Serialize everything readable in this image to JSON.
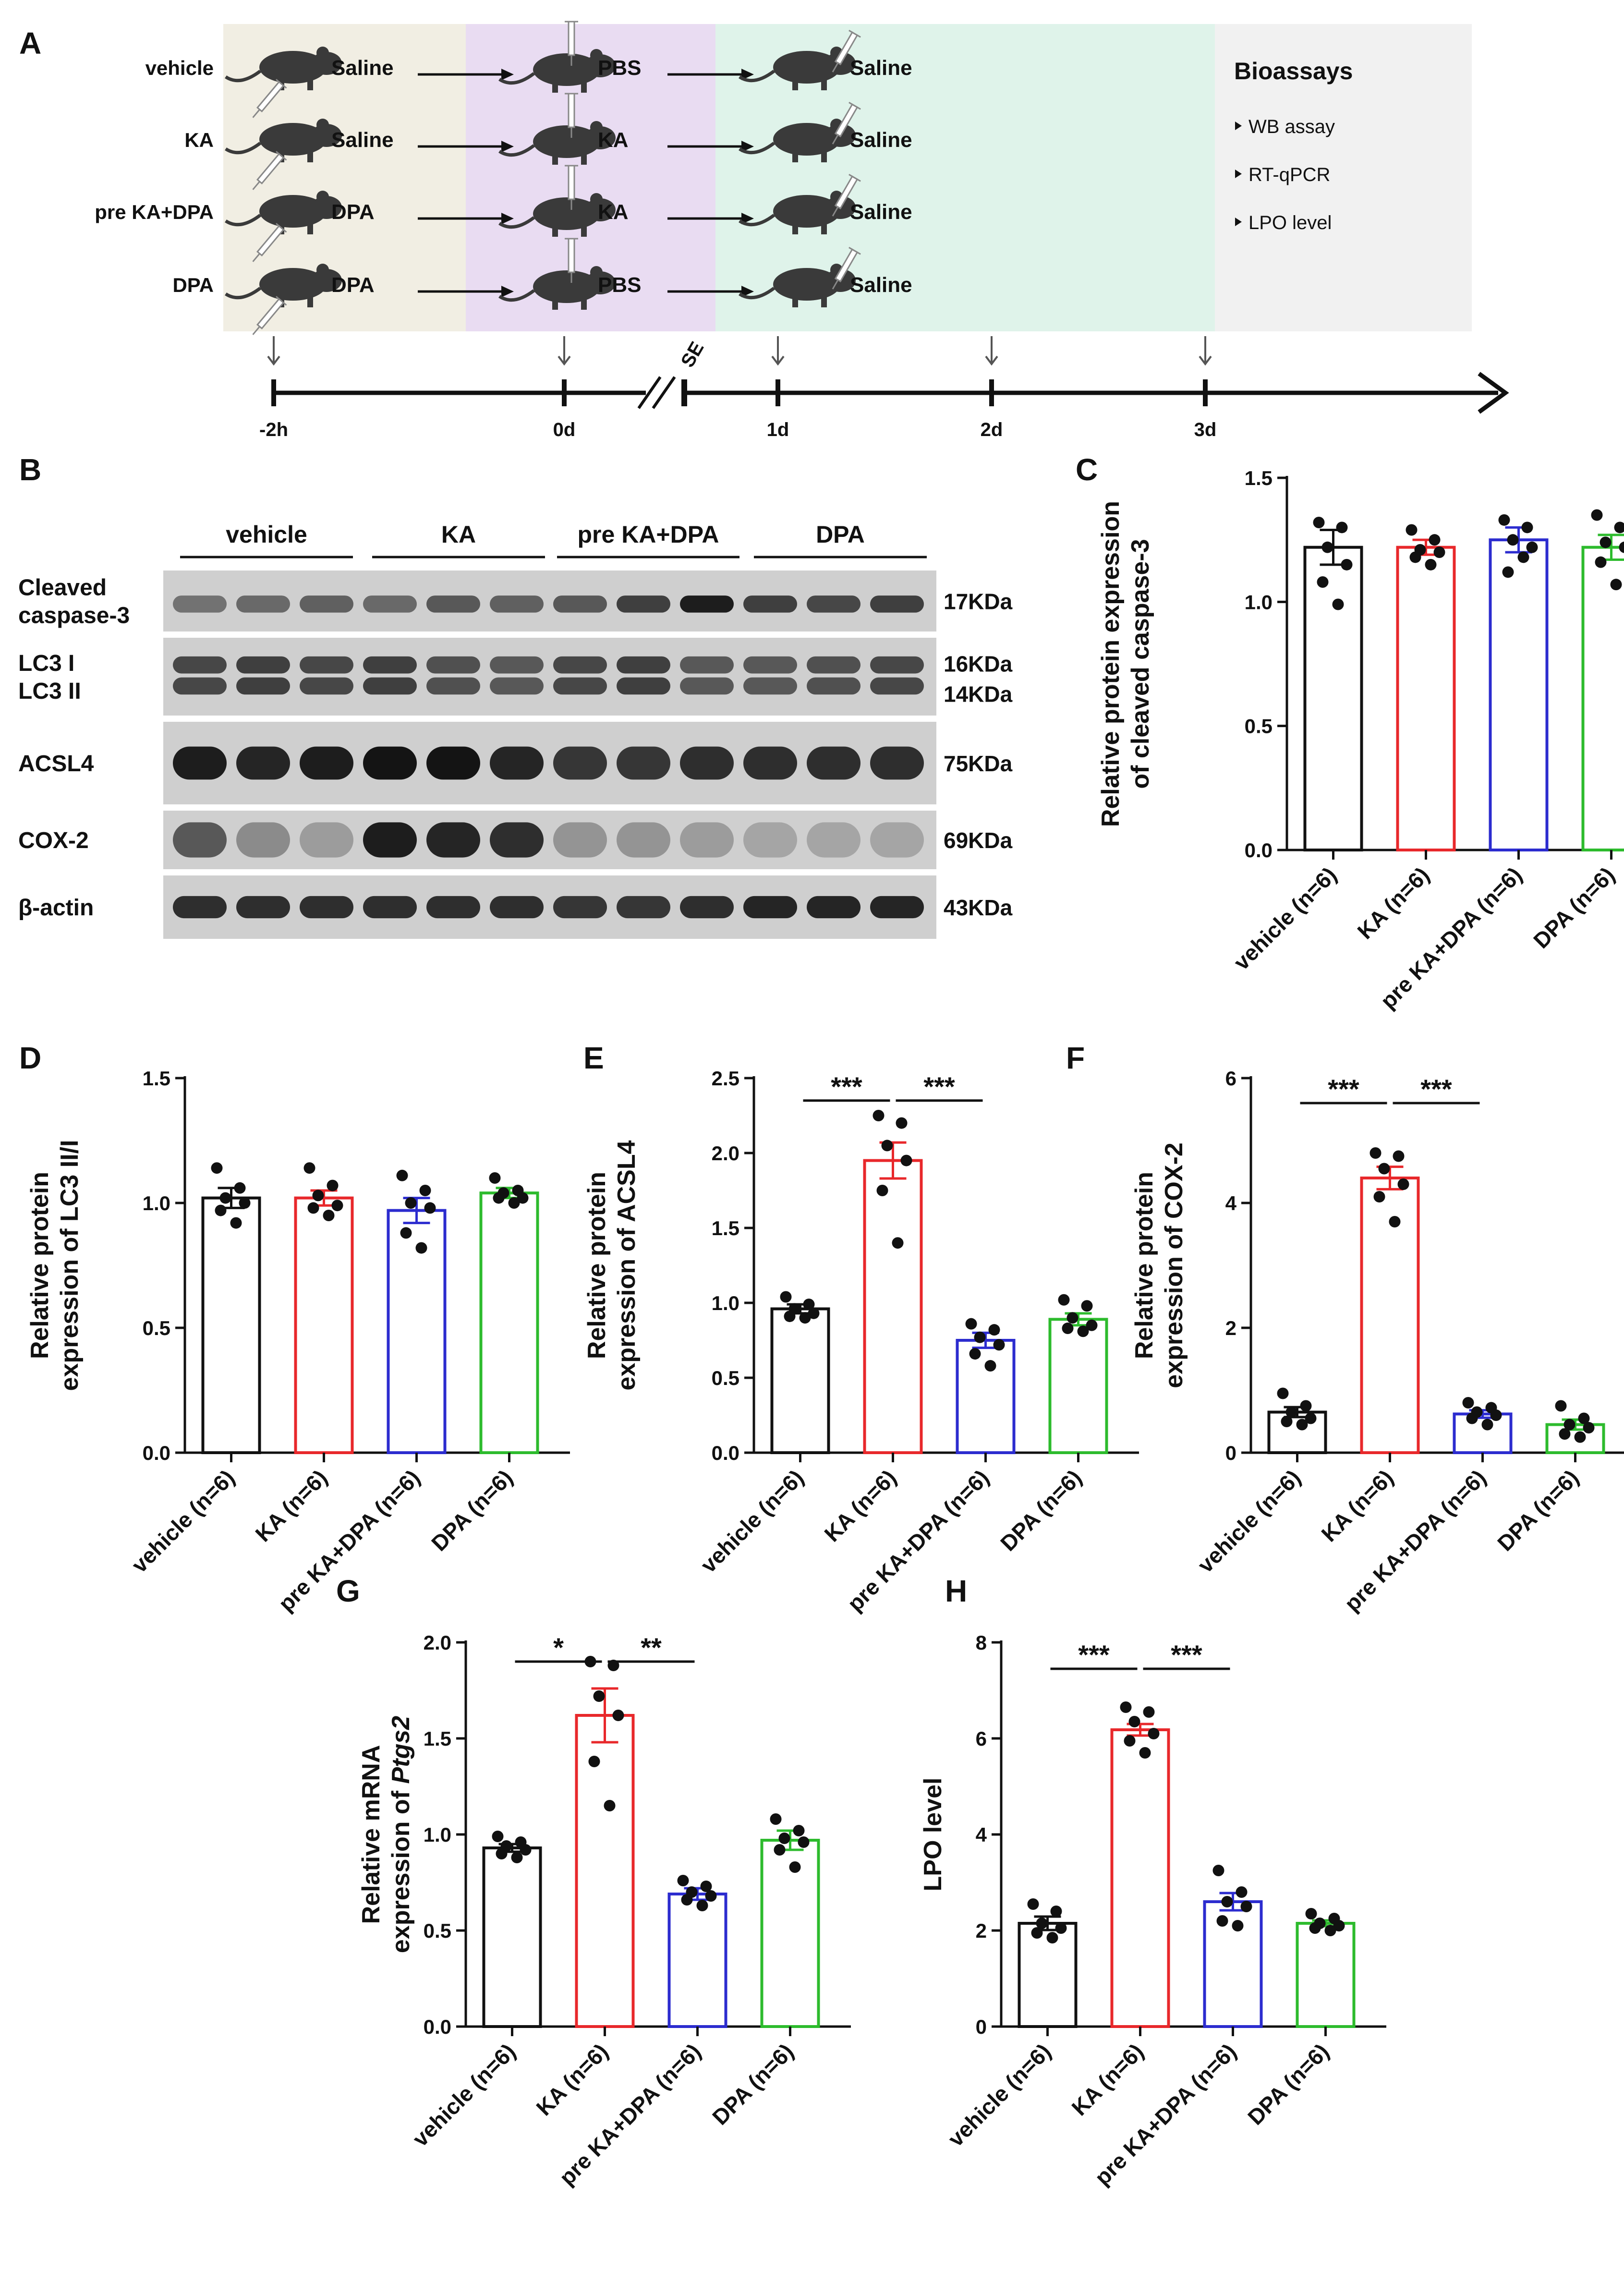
{
  "panels": {
    "a": "A",
    "b": "B",
    "c": "C",
    "d": "D",
    "e": "E",
    "f": "F",
    "g": "G",
    "h": "H"
  },
  "schematic": {
    "groups": [
      {
        "name": "vehicle",
        "pre": "Saline",
        "inj": "PBS",
        "post": "Saline",
        "inj_color": "#111111"
      },
      {
        "name": "KA",
        "pre": "Saline",
        "inj": "KA",
        "post": "Saline",
        "inj_color": "#e8282b"
      },
      {
        "name": "pre KA+DPA",
        "pre": "DPA",
        "inj": "KA",
        "post": "Saline",
        "inj_color": "#e8282b"
      },
      {
        "name": "DPA",
        "pre": "DPA",
        "inj": "PBS",
        "post": "Saline",
        "inj_color": "#111111"
      }
    ],
    "bioassays_title": "Bioassays",
    "bioassays": [
      "WB assay",
      "RT-qPCR",
      "LPO level"
    ],
    "timeline": [
      "-2h",
      "0d",
      "1d",
      "2d",
      "3d"
    ],
    "se_label": "SE",
    "colors": {
      "pre_bg": "#f1eee3",
      "inj_bg": "#e9dcf2",
      "post_bg": "#dff3ea",
      "bio_bg": "#f1f1f1"
    }
  },
  "western_blot": {
    "groups": [
      "vehicle",
      "KA",
      "pre KA+DPA",
      "DPA"
    ],
    "rows": [
      {
        "label": "Cleaved\ncaspase-3",
        "kda": [
          "17KDa"
        ]
      },
      {
        "label": "LC3 I\nLC3 II",
        "kda": [
          "16KDa",
          "14KDa"
        ]
      },
      {
        "label": "ACSL4",
        "kda": [
          "75KDa"
        ]
      },
      {
        "label": "COX-2",
        "kda": [
          "69KDa"
        ]
      },
      {
        "label": "β-actin",
        "kda": [
          "43KDa"
        ]
      }
    ]
  },
  "group_colors": [
    "#111111",
    "#e8282b",
    "#2c2ccf",
    "#2dbb2d"
  ],
  "chart_data": [
    {
      "panel": "C",
      "type": "bar",
      "categories": [
        "vehicle (n=6)",
        "KA (n=6)",
        "pre KA+DPA (n=6)",
        "DPA (n=6)"
      ],
      "ylabel": "Relative protein expression\nof cleaved caspase-3",
      "ylim": [
        0,
        1.5
      ],
      "yticks": [
        "0.0",
        "0.5",
        "1.0",
        "1.5"
      ],
      "values": [
        1.22,
        1.22,
        1.25,
        1.22
      ],
      "sem": [
        0.07,
        0.03,
        0.05,
        0.05
      ],
      "points": [
        [
          1.32,
          1.3,
          1.22,
          1.15,
          1.08,
          0.99
        ],
        [
          1.29,
          1.25,
          1.21,
          1.2,
          1.18,
          1.15
        ],
        [
          1.33,
          1.3,
          1.25,
          1.22,
          1.12,
          1.18
        ],
        [
          1.35,
          1.3,
          1.24,
          1.22,
          1.16,
          1.07
        ]
      ],
      "significance": []
    },
    {
      "panel": "D",
      "type": "bar",
      "categories": [
        "vehicle (n=6)",
        "KA (n=6)",
        "pre KA+DPA (n=6)",
        "DPA (n=6)"
      ],
      "ylabel": "Relative protein\nexpression of LC3 II/I",
      "ylim": [
        0,
        1.5
      ],
      "yticks": [
        "0.0",
        "0.5",
        "1.0",
        "1.5"
      ],
      "values": [
        1.02,
        1.02,
        0.97,
        1.04
      ],
      "sem": [
        0.04,
        0.03,
        0.05,
        0.02
      ],
      "points": [
        [
          1.14,
          1.06,
          1.02,
          1.0,
          0.97,
          0.92
        ],
        [
          1.14,
          1.07,
          1.03,
          0.99,
          0.98,
          0.95
        ],
        [
          1.11,
          1.05,
          1.0,
          0.98,
          0.88,
          0.82
        ],
        [
          1.1,
          1.05,
          1.04,
          1.02,
          1.02,
          1.0
        ]
      ],
      "significance": []
    },
    {
      "panel": "E",
      "type": "bar",
      "categories": [
        "vehicle (n=6)",
        "KA (n=6)",
        "pre KA+DPA (n=6)",
        "DPA (n=6)"
      ],
      "ylabel": "Relative protein\nexpression of ACSL4",
      "ylim": [
        0,
        2.5
      ],
      "yticks": [
        "0.0",
        "0.5",
        "1.0",
        "1.5",
        "2.0",
        "2.5"
      ],
      "values": [
        0.96,
        1.95,
        0.75,
        0.89
      ],
      "sem": [
        0.03,
        0.12,
        0.05,
        0.04
      ],
      "points": [
        [
          1.04,
          0.99,
          0.96,
          0.93,
          0.91,
          0.9
        ],
        [
          2.25,
          2.2,
          2.05,
          1.95,
          1.75,
          1.4
        ],
        [
          0.86,
          0.82,
          0.77,
          0.72,
          0.66,
          0.58
        ],
        [
          1.02,
          0.98,
          0.9,
          0.85,
          0.83,
          0.81
        ]
      ],
      "significance": [
        {
          "from": 0,
          "to": 1,
          "label": "***",
          "y": 2.35
        },
        {
          "from": 1,
          "to": 2,
          "label": "***",
          "y": 2.35
        }
      ]
    },
    {
      "panel": "F",
      "type": "bar",
      "categories": [
        "vehicle (n=6)",
        "KA (n=6)",
        "pre KA+DPA (n=6)",
        "DPA (n=6)"
      ],
      "ylabel": "Relative protein\nexpression of COX-2",
      "ylim": [
        0,
        6
      ],
      "yticks": [
        "0",
        "2",
        "4",
        "6"
      ],
      "values": [
        0.65,
        4.4,
        0.62,
        0.45
      ],
      "sem": [
        0.08,
        0.18,
        0.06,
        0.08
      ],
      "points": [
        [
          0.95,
          0.75,
          0.65,
          0.55,
          0.5,
          0.45
        ],
        [
          4.8,
          4.75,
          4.55,
          4.3,
          4.1,
          3.7
        ],
        [
          0.8,
          0.72,
          0.65,
          0.6,
          0.55,
          0.45
        ],
        [
          0.75,
          0.55,
          0.45,
          0.4,
          0.3,
          0.25
        ]
      ],
      "significance": [
        {
          "from": 0,
          "to": 1,
          "label": "***",
          "y": 5.6
        },
        {
          "from": 1,
          "to": 2,
          "label": "***",
          "y": 5.6
        }
      ]
    },
    {
      "panel": "G",
      "type": "bar",
      "categories": [
        "vehicle (n=6)",
        "KA (n=6)",
        "pre KA+DPA (n=6)",
        "DPA (n=6)"
      ],
      "ylabel": "Relative mRNA\nexpression of ",
      "ylabel_italic": "Ptgs2",
      "ylim": [
        0,
        2.0
      ],
      "yticks": [
        "0.0",
        "0.5",
        "1.0",
        "1.5",
        "2.0"
      ],
      "values": [
        0.93,
        1.62,
        0.69,
        0.97
      ],
      "sem": [
        0.02,
        0.14,
        0.03,
        0.05
      ],
      "points": [
        [
          0.99,
          0.96,
          0.94,
          0.92,
          0.9,
          0.88
        ],
        [
          1.9,
          1.88,
          1.72,
          1.62,
          1.38,
          1.15
        ],
        [
          0.76,
          0.73,
          0.7,
          0.68,
          0.66,
          0.63
        ],
        [
          1.08,
          1.02,
          0.98,
          0.96,
          0.92,
          0.83
        ]
      ],
      "significance": [
        {
          "from": 0,
          "to": 1,
          "label": "*",
          "y": 1.9
        },
        {
          "from": 1,
          "to": 2,
          "label": "**",
          "y": 1.9
        }
      ]
    },
    {
      "panel": "H",
      "type": "bar",
      "categories": [
        "vehicle (n=6)",
        "KA (n=6)",
        "pre KA+DPA (n=6)",
        "DPA (n=6)"
      ],
      "ylabel": "LPO level",
      "ylim": [
        0,
        8
      ],
      "yticks": [
        "0",
        "2",
        "4",
        "6",
        "8"
      ],
      "values": [
        2.15,
        6.18,
        2.6,
        2.15
      ],
      "sem": [
        0.14,
        0.12,
        0.18,
        0.06
      ],
      "points": [
        [
          2.55,
          2.4,
          2.15,
          2.05,
          1.95,
          1.85
        ],
        [
          6.65,
          6.55,
          6.35,
          6.1,
          5.95,
          5.7
        ],
        [
          3.25,
          2.8,
          2.6,
          2.5,
          2.2,
          2.1
        ],
        [
          2.35,
          2.25,
          2.15,
          2.1,
          2.05,
          2.0
        ]
      ],
      "significance": [
        {
          "from": 0,
          "to": 1,
          "label": "***",
          "y": 7.45
        },
        {
          "from": 1,
          "to": 2,
          "label": "***",
          "y": 7.45
        }
      ]
    }
  ]
}
